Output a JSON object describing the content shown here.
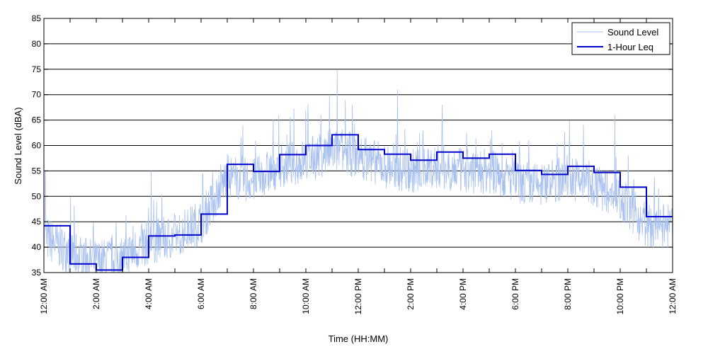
{
  "chart_data": {
    "type": "line",
    "xlabel": "Time (HH:MM)",
    "ylabel": "Sound Level (dBA)",
    "ylim": [
      35,
      85
    ],
    "xlim": [
      0,
      24
    ],
    "y_ticks": [
      35,
      40,
      45,
      50,
      55,
      60,
      65,
      70,
      75,
      80,
      85
    ],
    "x_tick_hours": [
      0,
      2,
      4,
      6,
      8,
      10,
      12,
      14,
      16,
      18,
      20,
      22,
      24
    ],
    "x_tick_labels": [
      "12:00 AM",
      "2:00 AM",
      "4:00 AM",
      "6:00 AM",
      "8:00 AM",
      "10:00 AM",
      "12:00 PM",
      "2:00 PM",
      "4:00 PM",
      "6:00 PM",
      "8:00 PM",
      "10:00 PM",
      "12:00 AM"
    ],
    "grid": "horizontal",
    "legend": "top-right",
    "colors": {
      "sound_level": "#a8c0f0",
      "leq": "#0000cc"
    },
    "series": [
      {
        "name": "Sound Level",
        "style": "thin-noisy",
        "baseline": [
          42,
          39,
          37,
          38,
          41,
          42,
          45,
          54,
          53,
          56,
          57,
          59,
          58,
          56,
          55,
          56,
          55,
          55,
          53,
          52,
          54,
          52,
          50,
          44
        ],
        "peaks": [
          {
            "x": 0.05,
            "y": 55
          },
          {
            "x": 4.1,
            "y": 55
          },
          {
            "x": 4.3,
            "y": 49
          },
          {
            "x": 7.6,
            "y": 64
          },
          {
            "x": 10.0,
            "y": 67
          },
          {
            "x": 10.9,
            "y": 70
          },
          {
            "x": 11.2,
            "y": 75
          },
          {
            "x": 11.5,
            "y": 69
          },
          {
            "x": 13.5,
            "y": 71
          },
          {
            "x": 15.2,
            "y": 68
          },
          {
            "x": 17.1,
            "y": 63
          },
          {
            "x": 20.6,
            "y": 64
          },
          {
            "x": 21.8,
            "y": 66
          }
        ]
      },
      {
        "name": "1-Hour Leq",
        "style": "step",
        "hours": [
          0,
          1,
          2,
          3,
          4,
          5,
          6,
          7,
          8,
          9,
          10,
          11,
          12,
          13,
          14,
          15,
          16,
          17,
          18,
          19,
          20,
          21,
          22,
          23
        ],
        "values": [
          44.2,
          36.7,
          35.5,
          38.0,
          42.2,
          42.4,
          46.5,
          56.3,
          54.9,
          58.2,
          60.0,
          62.1,
          59.2,
          58.3,
          57.1,
          58.7,
          57.5,
          58.3,
          55.1,
          54.3,
          55.9,
          54.7,
          51.8,
          46.0
        ]
      }
    ]
  }
}
